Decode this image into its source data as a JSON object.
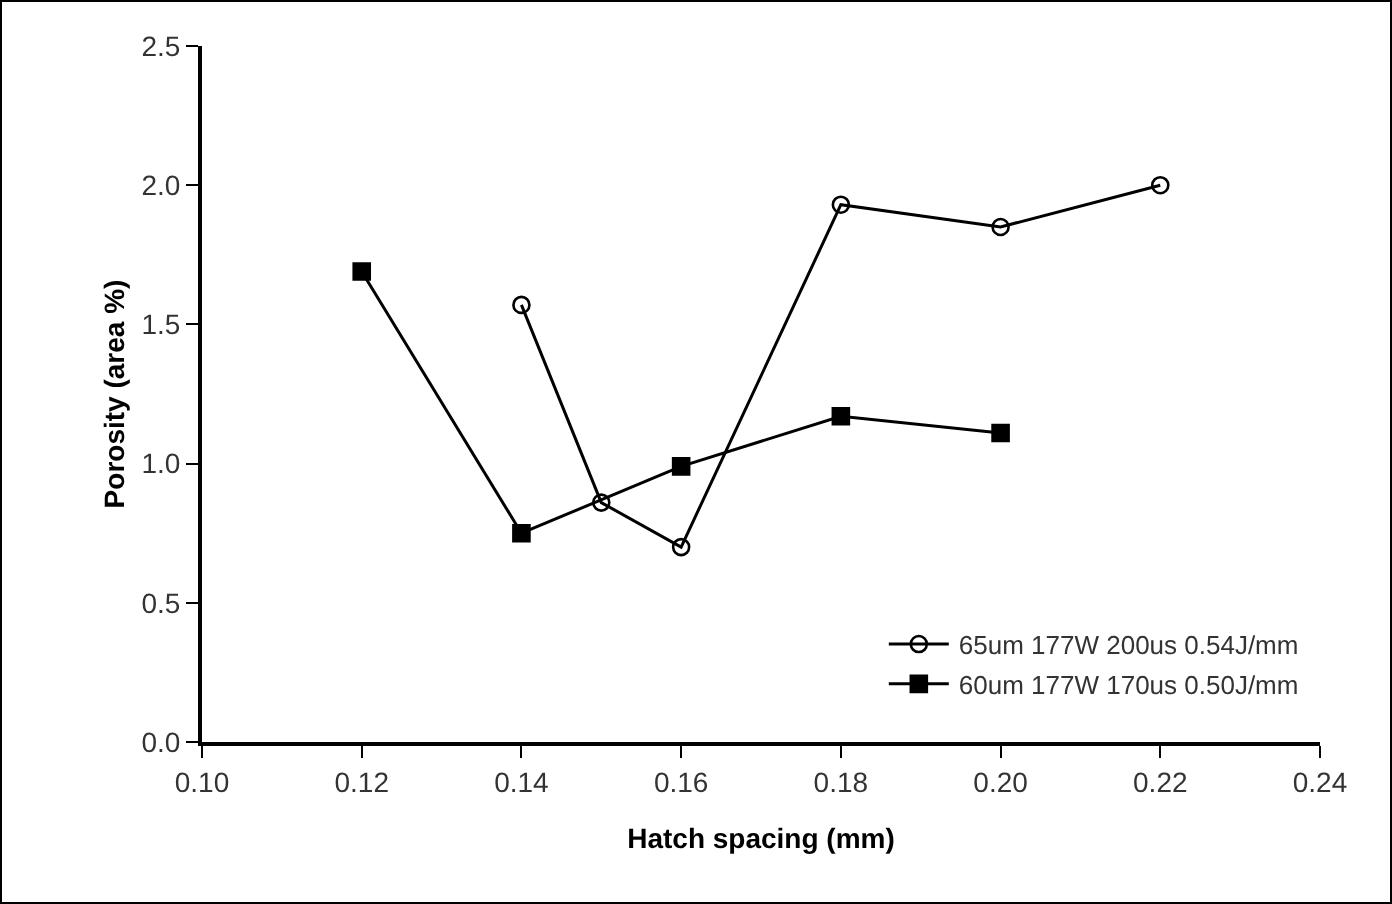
{
  "chart_data": {
    "type": "line",
    "xlabel": "Hatch spacing (mm)",
    "ylabel": "Porosity (area %)",
    "xlim": [
      0.1,
      0.24
    ],
    "xticks": [
      {
        "value": 0.1,
        "label": "0.10"
      },
      {
        "value": 0.12,
        "label": "0.12"
      },
      {
        "value": 0.14,
        "label": "0.14"
      },
      {
        "value": 0.16,
        "label": "0.16"
      },
      {
        "value": 0.18,
        "label": "0.18"
      },
      {
        "value": 0.2,
        "label": "0.20"
      },
      {
        "value": 0.22,
        "label": "0.22"
      },
      {
        "value": 0.24,
        "label": "0.24"
      }
    ],
    "ylim": [
      0,
      2.5
    ],
    "yticks": [
      {
        "value": 0,
        "label": "0.0"
      },
      {
        "value": 0.5,
        "label": "0.5"
      },
      {
        "value": 1,
        "label": "1.0"
      },
      {
        "value": 1.5,
        "label": "1.5"
      },
      {
        "value": 2,
        "label": "2.0"
      },
      {
        "value": 2.5,
        "label": "2.5"
      }
    ],
    "grid": false,
    "legend": "bottom right",
    "line_style": "solid",
    "series": [
      {
        "name": "65um 177W 200us 0.54J/mm",
        "color": "#000000",
        "marker": "circle",
        "x": [
          0.14,
          0.15,
          0.16,
          0.18,
          0.2,
          0.22
        ],
        "values": [
          1.57,
          0.86,
          0.7,
          1.93,
          1.85,
          2.0
        ]
      },
      {
        "name": "60um 177W 170us 0.50J/mm",
        "color": "#000000",
        "marker": "square",
        "x": [
          0.12,
          0.14,
          0.16,
          0.18,
          0.2
        ],
        "values": [
          1.69,
          0.75,
          0.99,
          1.17,
          1.11
        ]
      }
    ]
  }
}
